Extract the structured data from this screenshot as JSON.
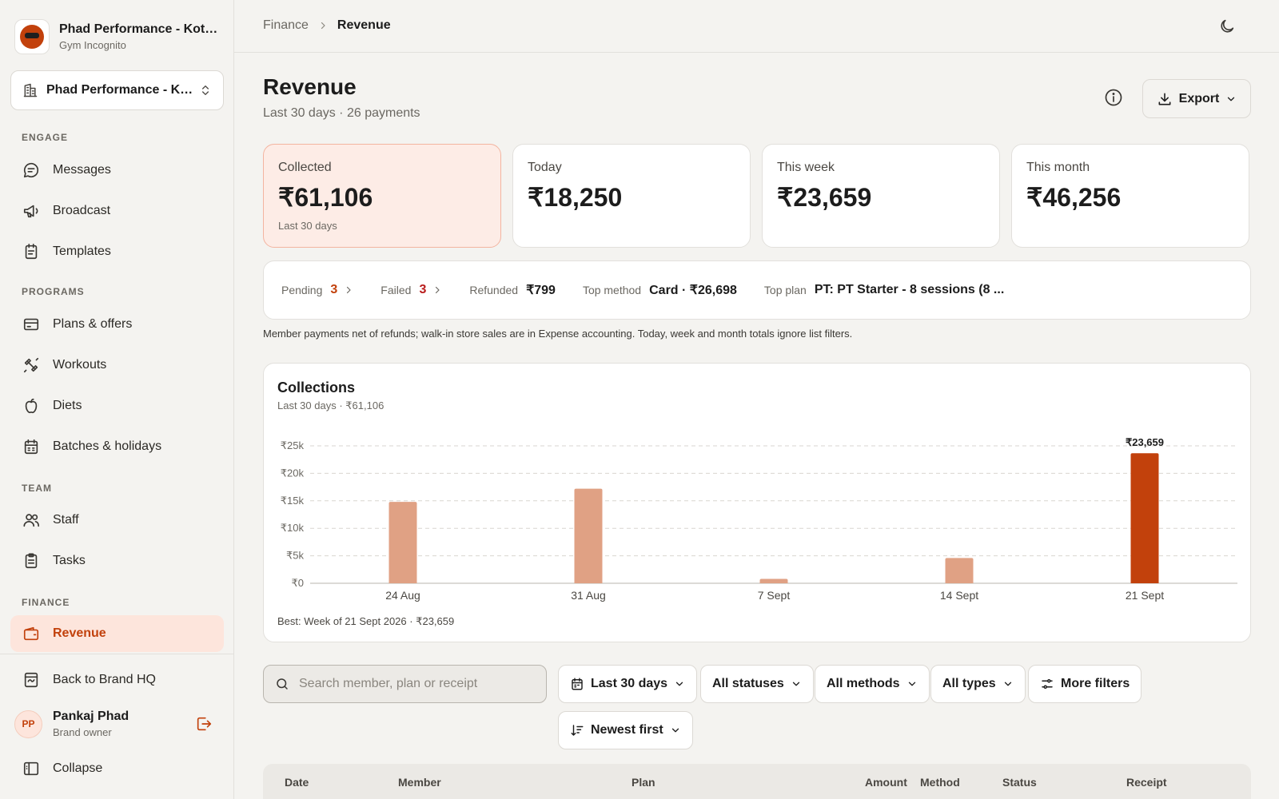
{
  "org": {
    "name": "Phad Performance - Kothrud",
    "subtitle": "Gym Incognito"
  },
  "branch": {
    "label": "Phad Performance - Kothrud"
  },
  "sidebar": {
    "sections": [
      {
        "label": "ENGAGE"
      },
      {
        "label": "PROGRAMS"
      },
      {
        "label": "TEAM"
      },
      {
        "label": "FINANCE"
      }
    ],
    "items": [
      {
        "label": "Messages",
        "icon": "message-icon"
      },
      {
        "label": "Broadcast",
        "icon": "megaphone-icon"
      },
      {
        "label": "Templates",
        "icon": "template-icon"
      },
      {
        "label": "Plans & offers",
        "icon": "card-icon"
      },
      {
        "label": "Workouts",
        "icon": "dumbbell-icon"
      },
      {
        "label": "Diets",
        "icon": "apple-icon"
      },
      {
        "label": "Batches & holidays",
        "icon": "calendar-icon"
      },
      {
        "label": "Staff",
        "icon": "users-icon"
      },
      {
        "label": "Tasks",
        "icon": "clipboard-icon"
      },
      {
        "label": "Revenue",
        "icon": "wallet-icon",
        "active": true
      }
    ],
    "back_label": "Back to Brand HQ",
    "collapse_label": "Collapse"
  },
  "user": {
    "initials": "PP",
    "name": "Pankaj Phad",
    "role": "Brand owner"
  },
  "breadcrumb": {
    "parent": "Finance",
    "current": "Revenue"
  },
  "header": {
    "title": "Revenue",
    "subtitle": "Last 30 days · 26 payments",
    "export_label": "Export"
  },
  "stats": [
    {
      "label": "Collected",
      "value": "₹61,106",
      "note": "Last 30 days"
    },
    {
      "label": "Today",
      "value": "₹18,250"
    },
    {
      "label": "This week",
      "value": "₹23,659"
    },
    {
      "label": "This month",
      "value": "₹46,256"
    }
  ],
  "summary": {
    "pending_label": "Pending",
    "pending_count": "3",
    "failed_label": "Failed",
    "failed_count": "3",
    "refunded_label": "Refunded",
    "refunded_value": "₹799",
    "top_method_label": "Top method",
    "top_method_value": "Card · ₹26,698",
    "top_plan_label": "Top plan",
    "top_plan_value": "PT: PT Starter - 8 sessions (8 ..."
  },
  "note": "Member payments net of refunds; walk-in store sales are in Expense accounting. Today, week and month totals ignore list filters.",
  "chart_data": {
    "type": "bar",
    "title": "Collections",
    "subtitle": "Last 30 days · ₹61,106",
    "categories": [
      "24 Aug",
      "31 Aug",
      "7 Sept",
      "14 Sept",
      "21 Sept"
    ],
    "values": [
      14800,
      17200,
      800,
      4600,
      23659
    ],
    "ylim": [
      0,
      25000
    ],
    "yticks": [
      0,
      5000,
      10000,
      15000,
      20000,
      25000
    ],
    "ytick_labels": [
      "₹0",
      "₹5k",
      "₹10k",
      "₹15k",
      "₹20k",
      "₹25k"
    ],
    "highlight_index": 4,
    "highlight_label": "₹23,659",
    "grid": true,
    "colors": {
      "bar": "#e0a184",
      "highlight": "#c2410c",
      "grid": "#d9d6d0"
    },
    "footer": "Best: Week of 21 Sept 2026 · ₹23,659"
  },
  "filters": {
    "search_placeholder": "Search member, plan or receipt",
    "date": "Last 30 days",
    "status": "All statuses",
    "method": "All methods",
    "type": "All types",
    "more": "More filters",
    "sort": "Newest first"
  },
  "table": {
    "columns": [
      "Date",
      "Member",
      "Plan",
      "Amount",
      "Method",
      "Status",
      "Receipt"
    ]
  },
  "colors": {
    "accent": "#c2410c",
    "accent_soft": "#fde5dc",
    "background": "#f4f3f0"
  }
}
